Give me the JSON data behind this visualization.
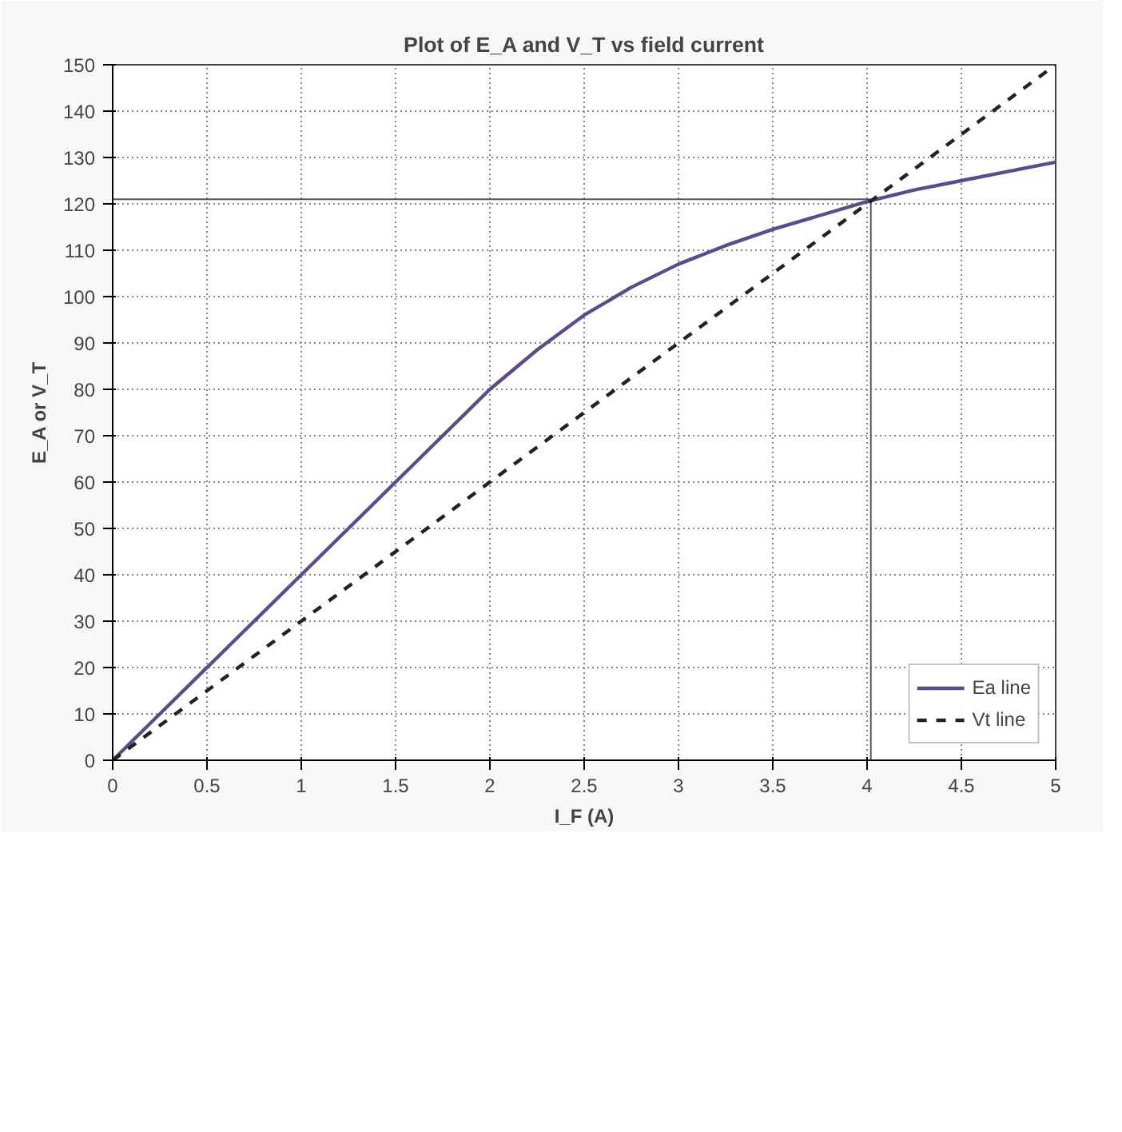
{
  "chart_data": {
    "type": "line",
    "title": "Plot of E_A and V_T vs field current",
    "xlabel": "I_F (A)",
    "ylabel": "E_A or V_T",
    "x": [
      0,
      0.25,
      0.5,
      0.75,
      1,
      1.25,
      1.5,
      1.75,
      2,
      2.25,
      2.5,
      2.75,
      3,
      3.25,
      3.5,
      3.75,
      4,
      4.25,
      4.5,
      4.75,
      5
    ],
    "series": [
      {
        "name": "Ea line",
        "color": "#5e4b8b",
        "line_style": "solid",
        "values": [
          0,
          10,
          20,
          30,
          40,
          50,
          60,
          70,
          80,
          88.5,
          96,
          102,
          107,
          111,
          114.5,
          117.5,
          120.5,
          123,
          125,
          127,
          129
        ]
      },
      {
        "name": "Vt line",
        "color": "#222222",
        "line_style": "dashed",
        "x": [
          0,
          5
        ],
        "values": [
          0,
          150
        ]
      }
    ],
    "xlim": [
      0,
      5
    ],
    "ylim": [
      0,
      150
    ],
    "xticks": [
      0,
      0.5,
      1,
      1.5,
      2,
      2.5,
      3,
      3.5,
      4,
      4.5,
      5
    ],
    "yticks": [
      0,
      10,
      20,
      30,
      40,
      50,
      60,
      70,
      80,
      90,
      100,
      110,
      120,
      130,
      140,
      150
    ],
    "ref_lines": [
      {
        "axis": "y",
        "value": 121,
        "color": "#555555"
      },
      {
        "axis": "x",
        "value": 4.02,
        "color": "#555555"
      }
    ],
    "grid": true,
    "legend": "bottom right",
    "marker": "none"
  }
}
